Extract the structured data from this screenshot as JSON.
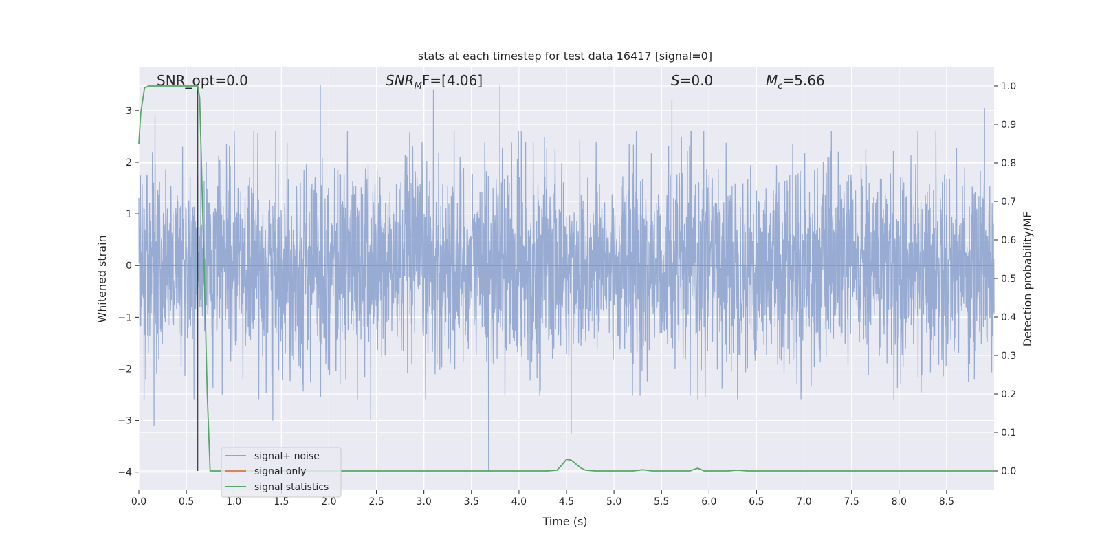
{
  "chart_data": {
    "type": "line",
    "title": "stats at each timestep for test data 16417 [signal=0]",
    "xlabel": "Time (s)",
    "ylabel_left": "Whitened strain",
    "ylabel_right": "Detection probability/MF",
    "xlim": [
      0.0,
      9.0
    ],
    "ylim_left": [
      -4.35,
      3.85
    ],
    "ylim_right": [
      -0.05,
      1.05
    ],
    "x_ticks": [
      "0.0",
      "0.5",
      "1.0",
      "1.5",
      "2.0",
      "2.5",
      "3.0",
      "3.5",
      "4.0",
      "4.5",
      "5.0",
      "5.5",
      "6.0",
      "6.5",
      "7.0",
      "7.5",
      "8.0",
      "8.5"
    ],
    "x_tick_values": [
      0.0,
      0.5,
      1.0,
      1.5,
      2.0,
      2.5,
      3.0,
      3.5,
      4.0,
      4.5,
      5.0,
      5.5,
      6.0,
      6.5,
      7.0,
      7.5,
      8.0,
      8.5
    ],
    "y_ticks_left": [
      "3",
      "2",
      "1",
      "0",
      "−1",
      "−2",
      "−3",
      "−4"
    ],
    "y_tick_values_left": [
      3,
      2,
      1,
      0,
      -1,
      -2,
      -3,
      -4
    ],
    "y_ticks_right": [
      "1.0",
      "0.9",
      "0.8",
      "0.7",
      "0.6",
      "0.5",
      "0.4",
      "0.3",
      "0.2",
      "0.1",
      "0.0"
    ],
    "y_tick_values_right": [
      1.0,
      0.9,
      0.8,
      0.7,
      0.6,
      0.5,
      0.4,
      0.3,
      0.2,
      0.1,
      0.0
    ],
    "grid": true,
    "legend_position": "lower-left",
    "annotations": {
      "snr_opt": "SNR_opt=0.0",
      "snr_mf_main": "SNR",
      "snr_mf_sub": "M",
      "snr_mf_rest": "F=[4.06]",
      "s_main": "S",
      "s_rest": "=0.0",
      "mc_main": "M",
      "mc_sub": "c",
      "mc_rest": "=5.66"
    },
    "marker_line_x": 0.62,
    "series": [
      {
        "name": "signal+ noise",
        "color": "#8fa5cf",
        "noise_envelope": [
          -3.1,
          3.5
        ],
        "notable_spikes": [
          {
            "x": 0.16,
            "y": -3.1
          },
          {
            "x": 0.17,
            "y": 2.9
          },
          {
            "x": 0.58,
            "y": -2.6
          },
          {
            "x": 1.41,
            "y": -3.0
          },
          {
            "x": 1.91,
            "y": 3.5
          },
          {
            "x": 2.44,
            "y": -3.0
          },
          {
            "x": 3.1,
            "y": 3.4
          },
          {
            "x": 3.68,
            "y": -4.0
          },
          {
            "x": 3.8,
            "y": 3.5
          },
          {
            "x": 4.55,
            "y": -3.25
          },
          {
            "x": 5.61,
            "y": 3.2
          },
          {
            "x": 8.9,
            "y": 3.05
          }
        ]
      },
      {
        "name": "signal only",
        "color": "#dd8452",
        "x": [
          0.0,
          9.0
        ],
        "y": [
          0.0,
          0.0
        ]
      },
      {
        "name": "signal statistics",
        "color": "#55a868",
        "x": [
          0.0,
          0.02,
          0.06,
          0.1,
          0.15,
          0.3,
          0.45,
          0.6,
          0.62,
          0.64,
          0.68,
          0.72,
          0.75,
          1.0,
          2.0,
          3.0,
          4.0,
          4.3,
          4.4,
          4.45,
          4.5,
          4.55,
          4.6,
          4.65,
          4.7,
          4.8,
          5.0,
          5.2,
          5.3,
          5.4,
          5.6,
          5.8,
          5.88,
          5.95,
          6.0,
          6.2,
          6.3,
          6.4,
          6.6,
          7.0,
          8.0,
          9.0
        ],
        "y": [
          0.85,
          0.93,
          0.995,
          1.0,
          1.0,
          1.0,
          1.0,
          1.0,
          1.0,
          0.97,
          0.6,
          0.2,
          0.0,
          0.0,
          0.0,
          0.0,
          0.0,
          0.0,
          0.002,
          0.015,
          0.03,
          0.028,
          0.018,
          0.008,
          0.002,
          0.0,
          0.0,
          0.0,
          0.003,
          0.0,
          0.0,
          0.0,
          0.007,
          0.0,
          0.0,
          0.0,
          0.002,
          0.0,
          0.0,
          0.0,
          0.0,
          0.0
        ]
      }
    ]
  }
}
